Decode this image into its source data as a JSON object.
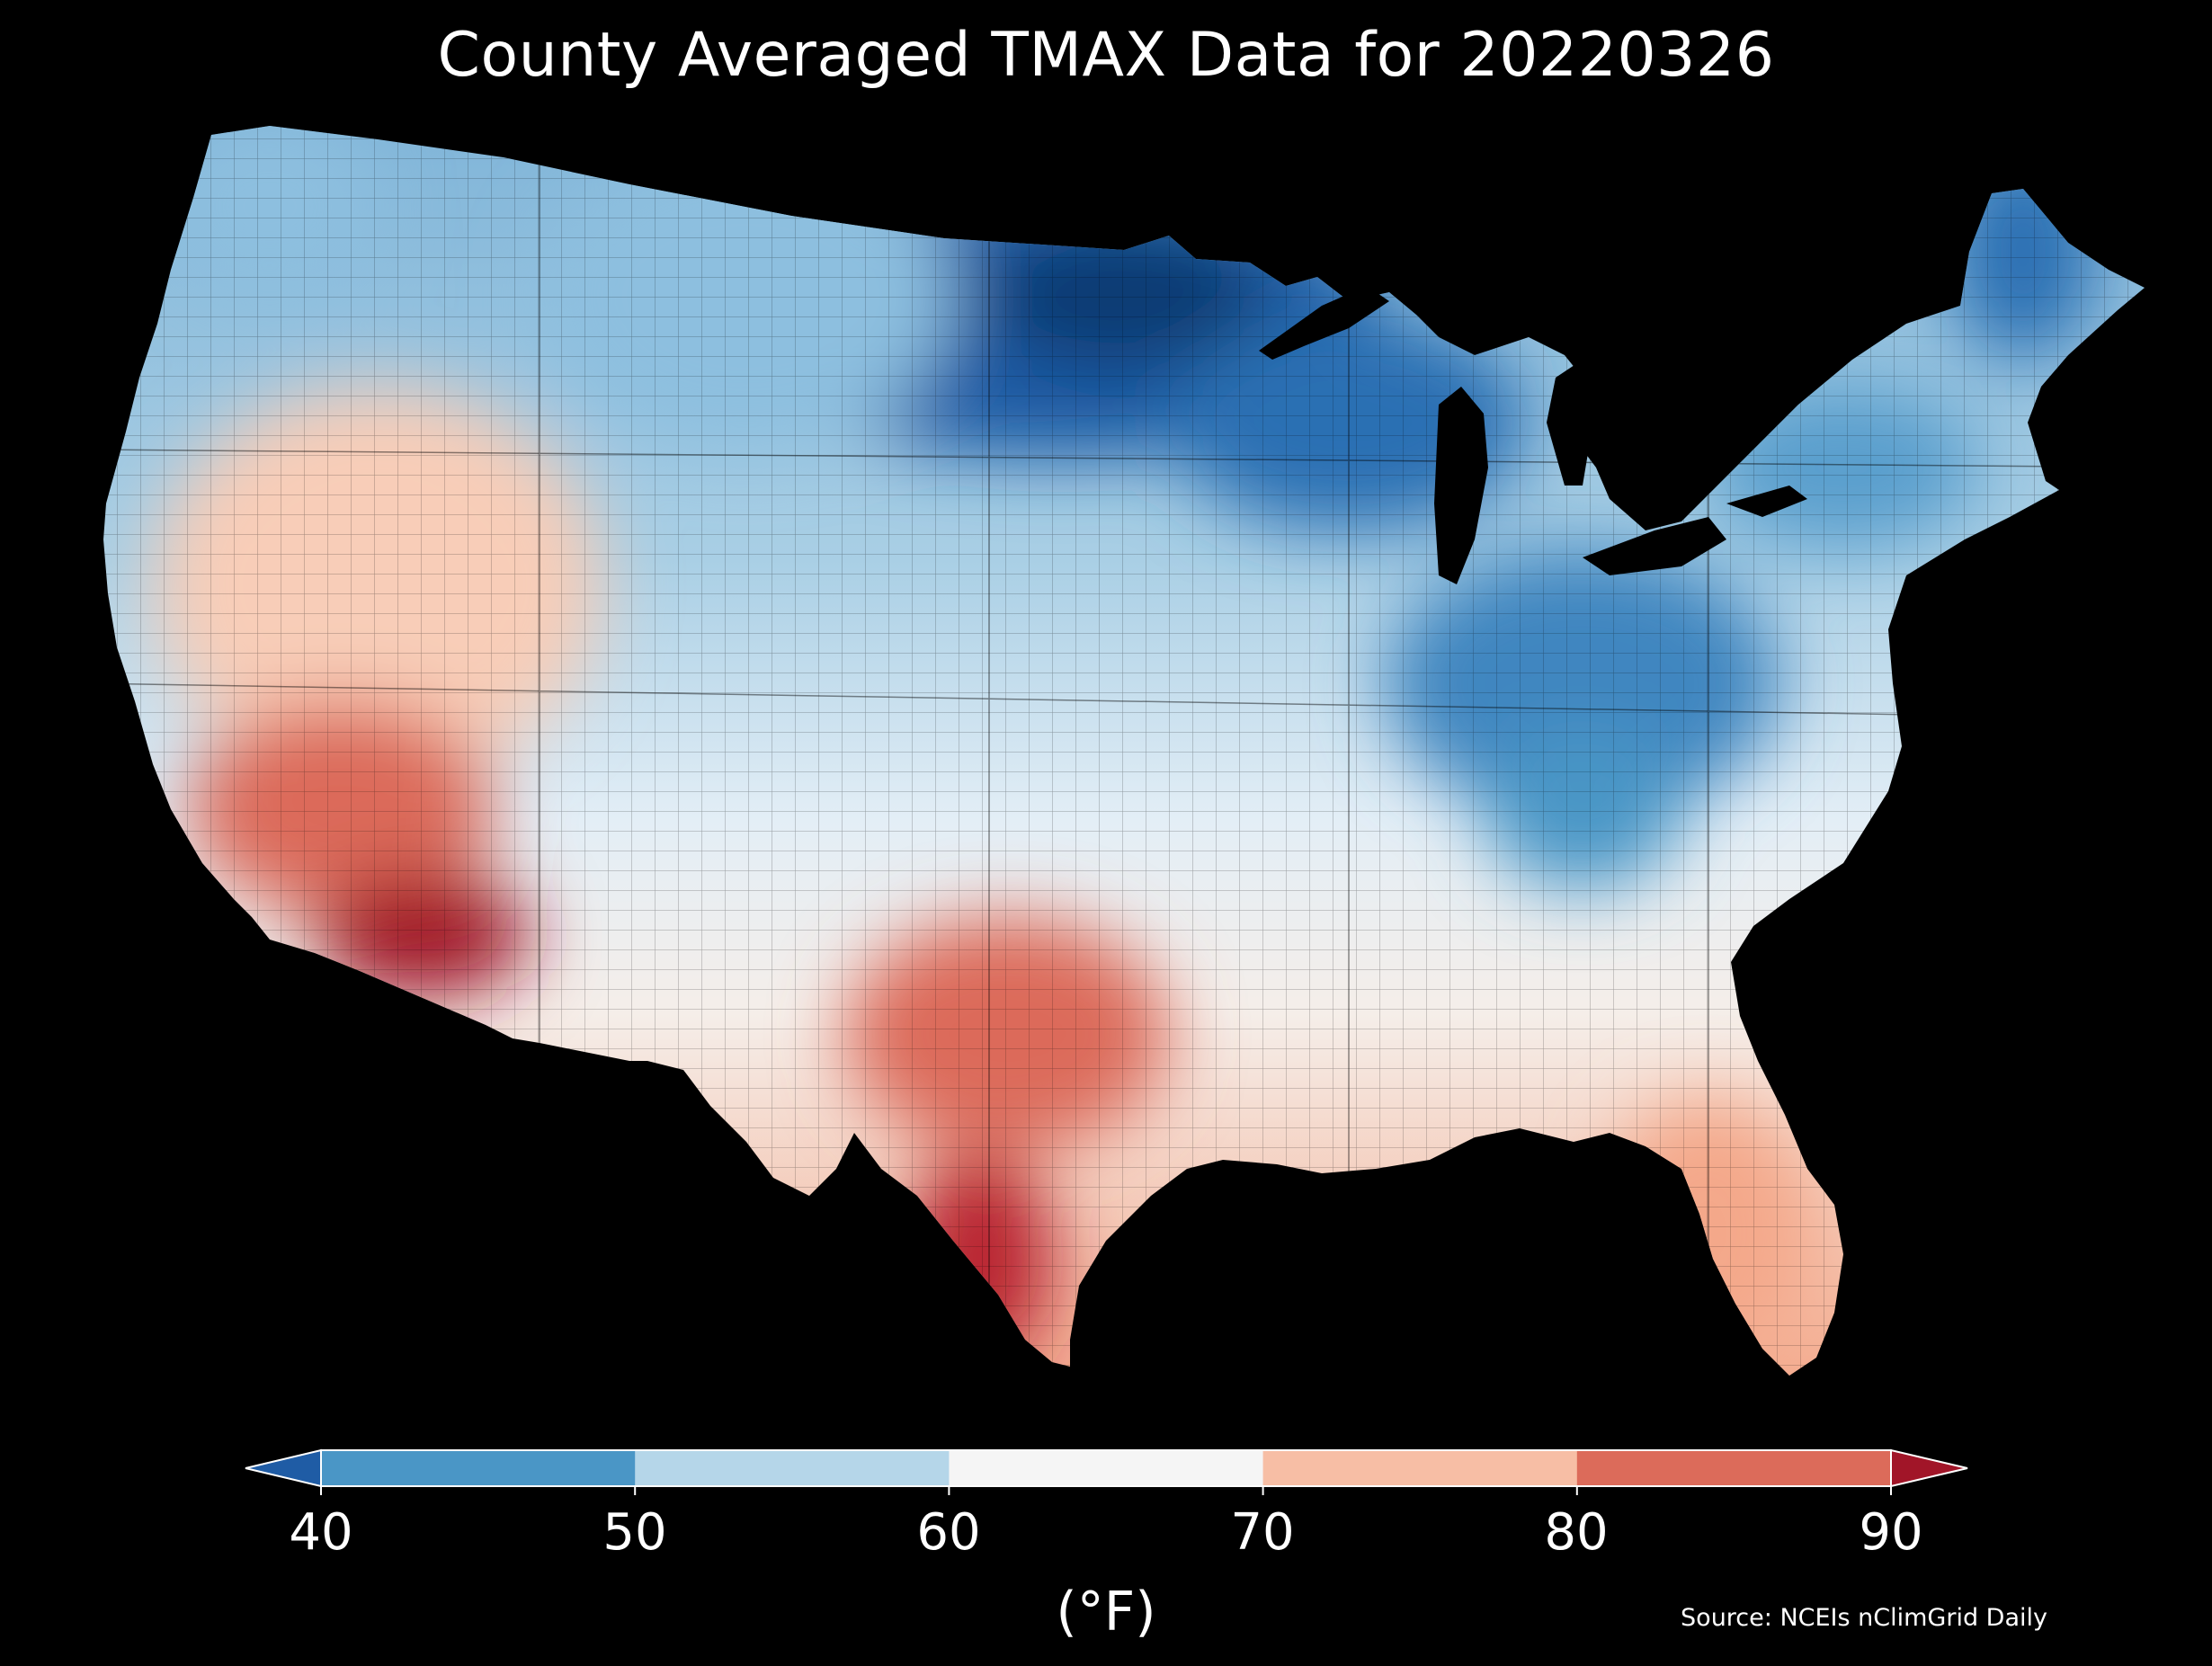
{
  "title": "County Averaged TMAX Data for 20220326",
  "colorbar": {
    "unit": "(°F)",
    "ticks": [
      "40",
      "50",
      "60",
      "70",
      "80",
      "90"
    ],
    "bins": [
      {
        "range": "<40",
        "color": "#1f5ca5"
      },
      {
        "range": "40-50",
        "color": "#4a96c6"
      },
      {
        "range": "50-60",
        "color": "#b5d6e9"
      },
      {
        "range": "60-70",
        "color": "#f5f5f5"
      },
      {
        "range": "70-80",
        "color": "#f7bea5"
      },
      {
        "range": "80-90",
        "color": "#dc6b5a"
      },
      {
        "range": ">90",
        "color": "#a11528"
      }
    ]
  },
  "source": "Source: NCEIs nClimGrid Daily",
  "colors": {
    "background": "#000000",
    "text": "#ffffff"
  }
}
